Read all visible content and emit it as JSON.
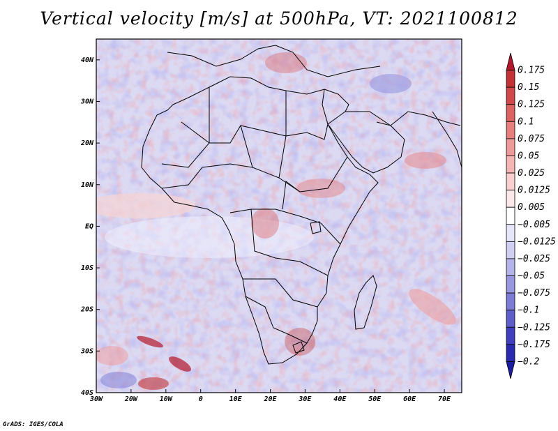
{
  "title": "Vertical velocity [m/s] at 500hPa, VT: 2021100812",
  "credit": "GrADS: IGES/COLA",
  "map": {
    "lon_range": [
      -30,
      75
    ],
    "lat_range": [
      -40,
      45
    ],
    "x_ticks": [
      "30W",
      "20W",
      "10W",
      "0",
      "10E",
      "20E",
      "30E",
      "40E",
      "50E",
      "60E",
      "70E"
    ],
    "y_ticks": [
      "40N",
      "30N",
      "20N",
      "10N",
      "EQ",
      "10S",
      "20S",
      "30S",
      "40S"
    ]
  },
  "colorbar": {
    "labels": [
      "0.175",
      "0.15",
      "0.125",
      "0.1",
      "0.075",
      "0.05",
      "0.025",
      "0.0125",
      "0.005",
      "−0.005",
      "−0.0125",
      "−0.025",
      "−0.05",
      "−0.075",
      "−0.1",
      "−0.125",
      "−0.175",
      "−0.2"
    ],
    "colors": [
      "#b2182b",
      "#c33335",
      "#d0484a",
      "#dd6262",
      "#e77f7f",
      "#ef9a9a",
      "#f5b5b5",
      "#f9cfcf",
      "#fce8e8",
      "#ffffff",
      "#e6e6fa",
      "#cfcff2",
      "#b4b4ea",
      "#9898e0",
      "#7c7cd6",
      "#5e5ecb",
      "#4040bf",
      "#2a2ab0",
      "#1c1c9e"
    ]
  },
  "colors": {
    "background": "#ffffff",
    "coast": "#000000",
    "field_base": "#d9d7f2"
  }
}
